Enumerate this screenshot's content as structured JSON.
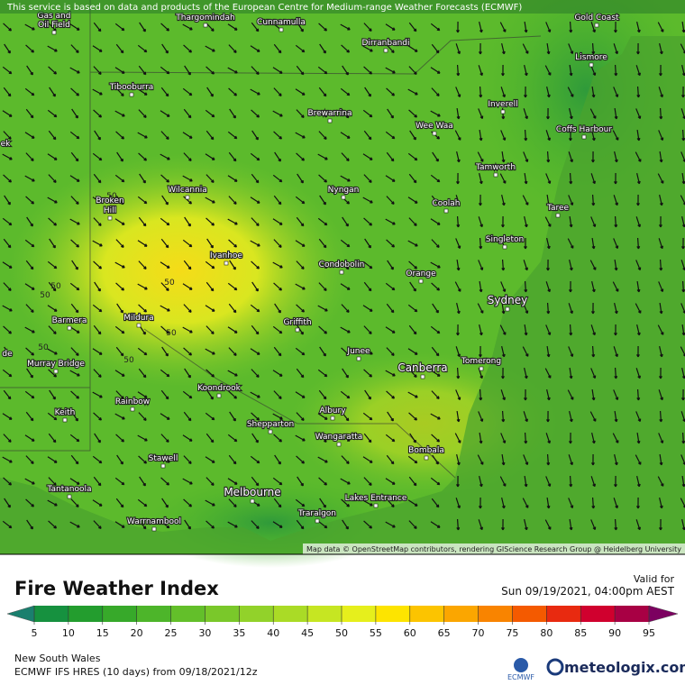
{
  "header": {
    "notice": "This service is based on data and products of the European Centre for Medium-range Weather Forecasts (ECMWF)"
  },
  "map": {
    "places": [
      "Gas and",
      "Oil Field",
      "Thargomindah",
      "Cunnamulla",
      "Gold Coast",
      "Dirranbandi",
      "Lismore",
      "Tibooburra",
      "Brewarrina",
      "Inverell",
      "Wee Waa",
      "Coffs Harbour",
      "Tamworth",
      "Wilcannia",
      "Broken",
      "Hill",
      "Nyngan",
      "Coolah",
      "Taree",
      "Singleton",
      "Ivanhoe",
      "Condobolin",
      "Orange",
      "Sydney",
      "Barmera",
      "Mildura",
      "Griffith",
      "Murray Bridge",
      "Junee",
      "Canberra",
      "Tomerong",
      "Koondrook",
      "Rainbow",
      "Keith",
      "Albury",
      "Shepparton",
      "Wangaratta",
      "Bombala",
      "Stawell",
      "Tantanoola",
      "Melbourne",
      "Lakes Entrance",
      "Traralgon",
      "Warrnambool",
      "ek",
      "de"
    ],
    "contour_labels": [
      "50",
      "50",
      "50",
      "50",
      "50",
      "50",
      "50"
    ],
    "attribution": "Map data © OpenStreetMap contributors, rendering GIScience Research Group @ Heidelberg University"
  },
  "legend": {
    "title": "Fire Weather Index",
    "valid_label": "Valid for",
    "valid_time": "Sun 09/19/2021, 04:00pm AEST",
    "ticks": [
      5,
      10,
      15,
      20,
      25,
      30,
      35,
      40,
      45,
      50,
      55,
      60,
      65,
      70,
      75,
      80,
      85,
      90,
      95
    ],
    "colors": [
      "#1a7f6e",
      "#16913f",
      "#239d2e",
      "#37a92a",
      "#4db52a",
      "#63bf2a",
      "#7ac82a",
      "#92d22a",
      "#aadb26",
      "#c6e622",
      "#e6ef1c",
      "#fde400",
      "#fcc400",
      "#fba600",
      "#f98400",
      "#f45a00",
      "#e82a10",
      "#d0002e",
      "#a80044",
      "#7c0060"
    ]
  },
  "footer": {
    "region": "New South Wales",
    "model": "ECMWF IFS HRES (10 days) from 09/18/2021/12z",
    "ecmwf": "ECMWF",
    "brand": "meteologix.com"
  }
}
